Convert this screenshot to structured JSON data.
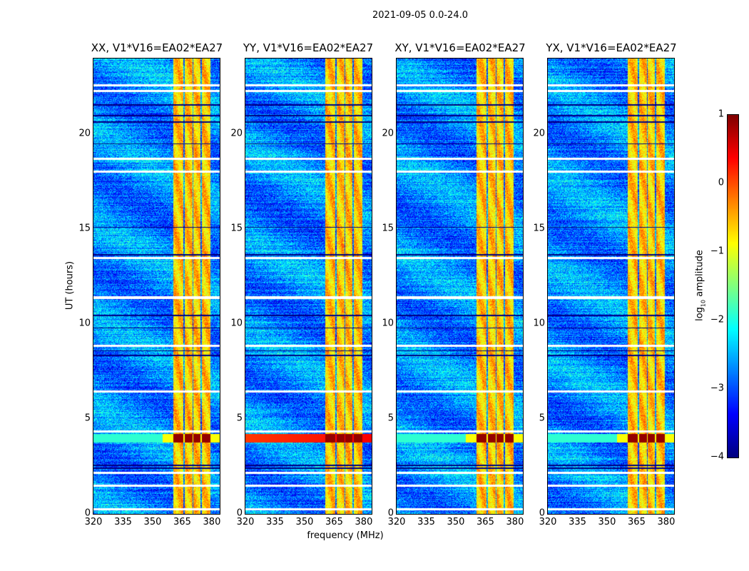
{
  "chart_data": {
    "type": "heatmap",
    "suptitle": "2021-09-05 0.0-24.0",
    "xlabel": "frequency (MHz)",
    "ylabel": "UT (hours)",
    "xlim": [
      320,
      384
    ],
    "ylim": [
      0,
      24
    ],
    "xticks": [
      320,
      335,
      350,
      365,
      380
    ],
    "yticks": [
      0,
      5,
      10,
      15,
      20
    ],
    "colormap": "jet",
    "colorbar": {
      "label_main": "log",
      "label_sub": "10",
      "label_rest": " amplitude",
      "range": [
        -4,
        1
      ],
      "ticks": [
        -4,
        -3,
        -2,
        -1,
        0,
        1
      ]
    },
    "panels": [
      {
        "title": "XX, V1*V16=EA02*EA27",
        "storm_all_freq": false
      },
      {
        "title": "YY, V1*V16=EA02*EA27",
        "storm_all_freq": true
      },
      {
        "title": "XY, V1*V16=EA02*EA27",
        "storm_all_freq": false
      },
      {
        "title": "YX, V1*V16=EA02*EA27",
        "storm_all_freq": false
      }
    ],
    "background_level": -2.7,
    "rfi_bands_mhz": [
      [
        360.5,
        365.5
      ],
      [
        366.3,
        370.2
      ],
      [
        370.8,
        374.3
      ],
      [
        375.0,
        379.2
      ]
    ],
    "rfi_level": -0.6,
    "storm_hours": [
      3.75,
      4.2
    ],
    "storm_level": 0.9,
    "flagged_hours": [
      0.25,
      1.5,
      2.15,
      4.35,
      6.45,
      8.85,
      11.4,
      13.5,
      18.05,
      18.7,
      22.3,
      22.6
    ],
    "dropout_hours": [
      2.4,
      2.55,
      8.35,
      8.6,
      9.8,
      10.45,
      13.65,
      15.1,
      19.5,
      20.65,
      21.0,
      21.55
    ]
  }
}
